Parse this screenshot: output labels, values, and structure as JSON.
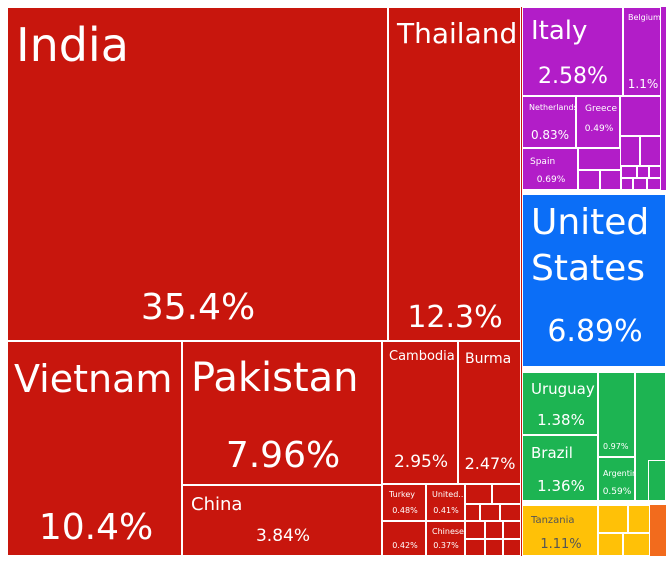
{
  "colors": {
    "asia": "#c8160d",
    "europe": "#b21dc8",
    "north_america": "#0b6ef7",
    "south_america": "#1db452",
    "africa": "#ffc107",
    "oceania": "#f26b1d",
    "background": "#ffffff"
  },
  "chart_data": {
    "type": "treemap",
    "title": "",
    "value_unit": "%",
    "cells": [
      {
        "name": "India",
        "value": "35.4%",
        "share": 35.4,
        "region": "asia"
      },
      {
        "name": "Thailand",
        "value": "12.3%",
        "share": 12.3,
        "region": "asia"
      },
      {
        "name": "Vietnam",
        "value": "10.4%",
        "share": 10.4,
        "region": "asia"
      },
      {
        "name": "Pakistan",
        "value": "7.96%",
        "share": 7.96,
        "region": "asia"
      },
      {
        "name": "China",
        "value": "3.84%",
        "share": 3.84,
        "region": "asia"
      },
      {
        "name": "Cambodia",
        "value": "2.95%",
        "share": 2.95,
        "region": "asia"
      },
      {
        "name": "Burma",
        "value": "2.47%",
        "share": 2.47,
        "region": "asia"
      },
      {
        "name": "Turkey",
        "value": "0.48%",
        "share": 0.48,
        "region": "asia"
      },
      {
        "name": "United...",
        "value": "0.41%",
        "share": 0.41,
        "region": "asia"
      },
      {
        "name": "",
        "value": "0.42%",
        "share": 0.42,
        "region": "asia"
      },
      {
        "name": "Chinese...",
        "value": "0.37%",
        "share": 0.37,
        "region": "asia"
      },
      {
        "name": "Italy",
        "value": "2.58%",
        "share": 2.58,
        "region": "europe"
      },
      {
        "name": "Belgium",
        "value": "1.1%",
        "share": 1.1,
        "region": "europe"
      },
      {
        "name": "Netherlands",
        "value": "0.83%",
        "share": 0.83,
        "region": "europe"
      },
      {
        "name": "Greece",
        "value": "0.49%",
        "share": 0.49,
        "region": "europe"
      },
      {
        "name": "Spain",
        "value": "0.69%",
        "share": 0.69,
        "region": "europe"
      },
      {
        "name": "United States",
        "value": "6.89%",
        "share": 6.89,
        "region": "north_america"
      },
      {
        "name": "Uruguay",
        "value": "1.38%",
        "share": 1.38,
        "region": "south_america"
      },
      {
        "name": "Brazil",
        "value": "1.36%",
        "share": 1.36,
        "region": "south_america"
      },
      {
        "name": "",
        "value": "0.97%",
        "share": 0.97,
        "region": "south_america"
      },
      {
        "name": "Argentina",
        "value": "0.59%",
        "share": 0.59,
        "region": "south_america"
      },
      {
        "name": "Tanzania",
        "value": "1.11%",
        "share": 1.11,
        "region": "africa"
      }
    ]
  }
}
